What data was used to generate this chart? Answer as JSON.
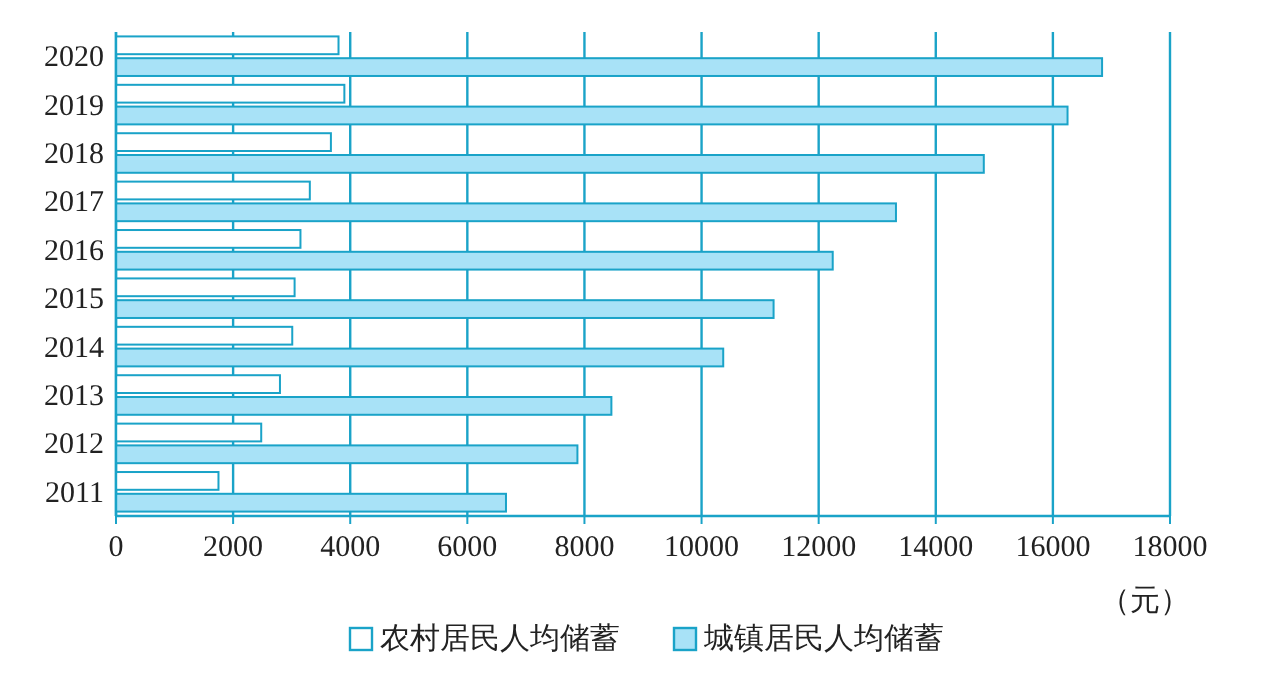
{
  "chart_data": {
    "type": "bar",
    "orientation": "horizontal",
    "categories": [
      "2020",
      "2019",
      "2018",
      "2017",
      "2016",
      "2015",
      "2014",
      "2013",
      "2012",
      "2011"
    ],
    "series": [
      {
        "name": "农村居民人均储蓄",
        "color": "#ffffff",
        "values": [
          3800,
          3900,
          3670,
          3310,
          3150,
          3050,
          3010,
          2800,
          2480,
          1750
        ]
      },
      {
        "name": "城镇居民人均储蓄",
        "color": "#a8e2f7",
        "values": [
          16840,
          16250,
          14820,
          13320,
          12240,
          11230,
          10370,
          8460,
          7880,
          6660
        ]
      }
    ],
    "xlim": [
      0,
      18000
    ],
    "xticks": [
      0,
      2000,
      4000,
      6000,
      8000,
      10000,
      12000,
      14000,
      16000,
      18000
    ],
    "xlabel": "（元）",
    "grid": "x",
    "legend": "bottom"
  }
}
